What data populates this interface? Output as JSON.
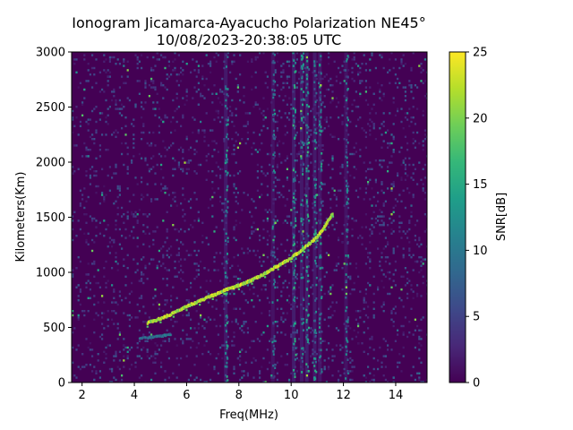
{
  "chart_data": {
    "type": "heatmap",
    "title_line1": "Ionogram Jicamarca-Ayacucho Polarization NE45°",
    "title_line2": "10/08/2023-20:38:05 UTC",
    "xlabel": "Freq(MHz)",
    "ylabel": "Kilometers(Km)",
    "xlim": [
      1.6,
      15.2
    ],
    "ylim": [
      0,
      3000
    ],
    "xticks": [
      "2",
      "4",
      "6",
      "8",
      "10",
      "12",
      "14"
    ],
    "xtick_values": [
      2,
      4,
      6,
      8,
      10,
      12,
      14
    ],
    "yticks": [
      "0",
      "500",
      "1000",
      "1500",
      "2000",
      "2500",
      "3000"
    ],
    "ytick_values": [
      0,
      500,
      1000,
      1500,
      2000,
      2500,
      3000
    ],
    "colorbar": {
      "label": "SNR[dB]",
      "range": [
        0,
        25
      ],
      "ticks": [
        "0",
        "5",
        "10",
        "15",
        "20",
        "25"
      ],
      "tick_values": [
        0,
        5,
        10,
        15,
        20,
        25
      ],
      "colormap": "viridis"
    },
    "colormap_stops": [
      "#440154",
      "#482878",
      "#3e4989",
      "#31688e",
      "#26828e",
      "#1f9e89",
      "#35b779",
      "#6ece58",
      "#b5de2b",
      "#fde725"
    ],
    "trace": {
      "description_points": [
        [
          4.5,
          540
        ],
        [
          5.0,
          580
        ],
        [
          5.5,
          630
        ],
        [
          6.0,
          690
        ],
        [
          6.5,
          740
        ],
        [
          7.0,
          790
        ],
        [
          7.5,
          840
        ],
        [
          8.0,
          880
        ],
        [
          8.5,
          930
        ],
        [
          9.0,
          990
        ],
        [
          9.5,
          1060
        ],
        [
          10.0,
          1130
        ],
        [
          10.5,
          1220
        ],
        [
          11.0,
          1320
        ],
        [
          11.3,
          1420
        ],
        [
          11.6,
          1540
        ]
      ],
      "snr": 25
    },
    "lower_trace": {
      "points": [
        [
          4.2,
          400
        ],
        [
          4.6,
          410
        ],
        [
          5.0,
          420
        ],
        [
          5.4,
          440
        ]
      ],
      "snr": 12
    },
    "noise_bands": [
      {
        "freq": 7.5,
        "snr": 6
      },
      {
        "freq": 9.3,
        "snr": 4
      },
      {
        "freq": 10.1,
        "snr": 7
      },
      {
        "freq": 10.4,
        "snr": 6
      },
      {
        "freq": 10.6,
        "snr": 7
      },
      {
        "freq": 10.9,
        "snr": 6
      },
      {
        "freq": 11.1,
        "snr": 5
      },
      {
        "freq": 12.1,
        "snr": 4
      }
    ]
  }
}
